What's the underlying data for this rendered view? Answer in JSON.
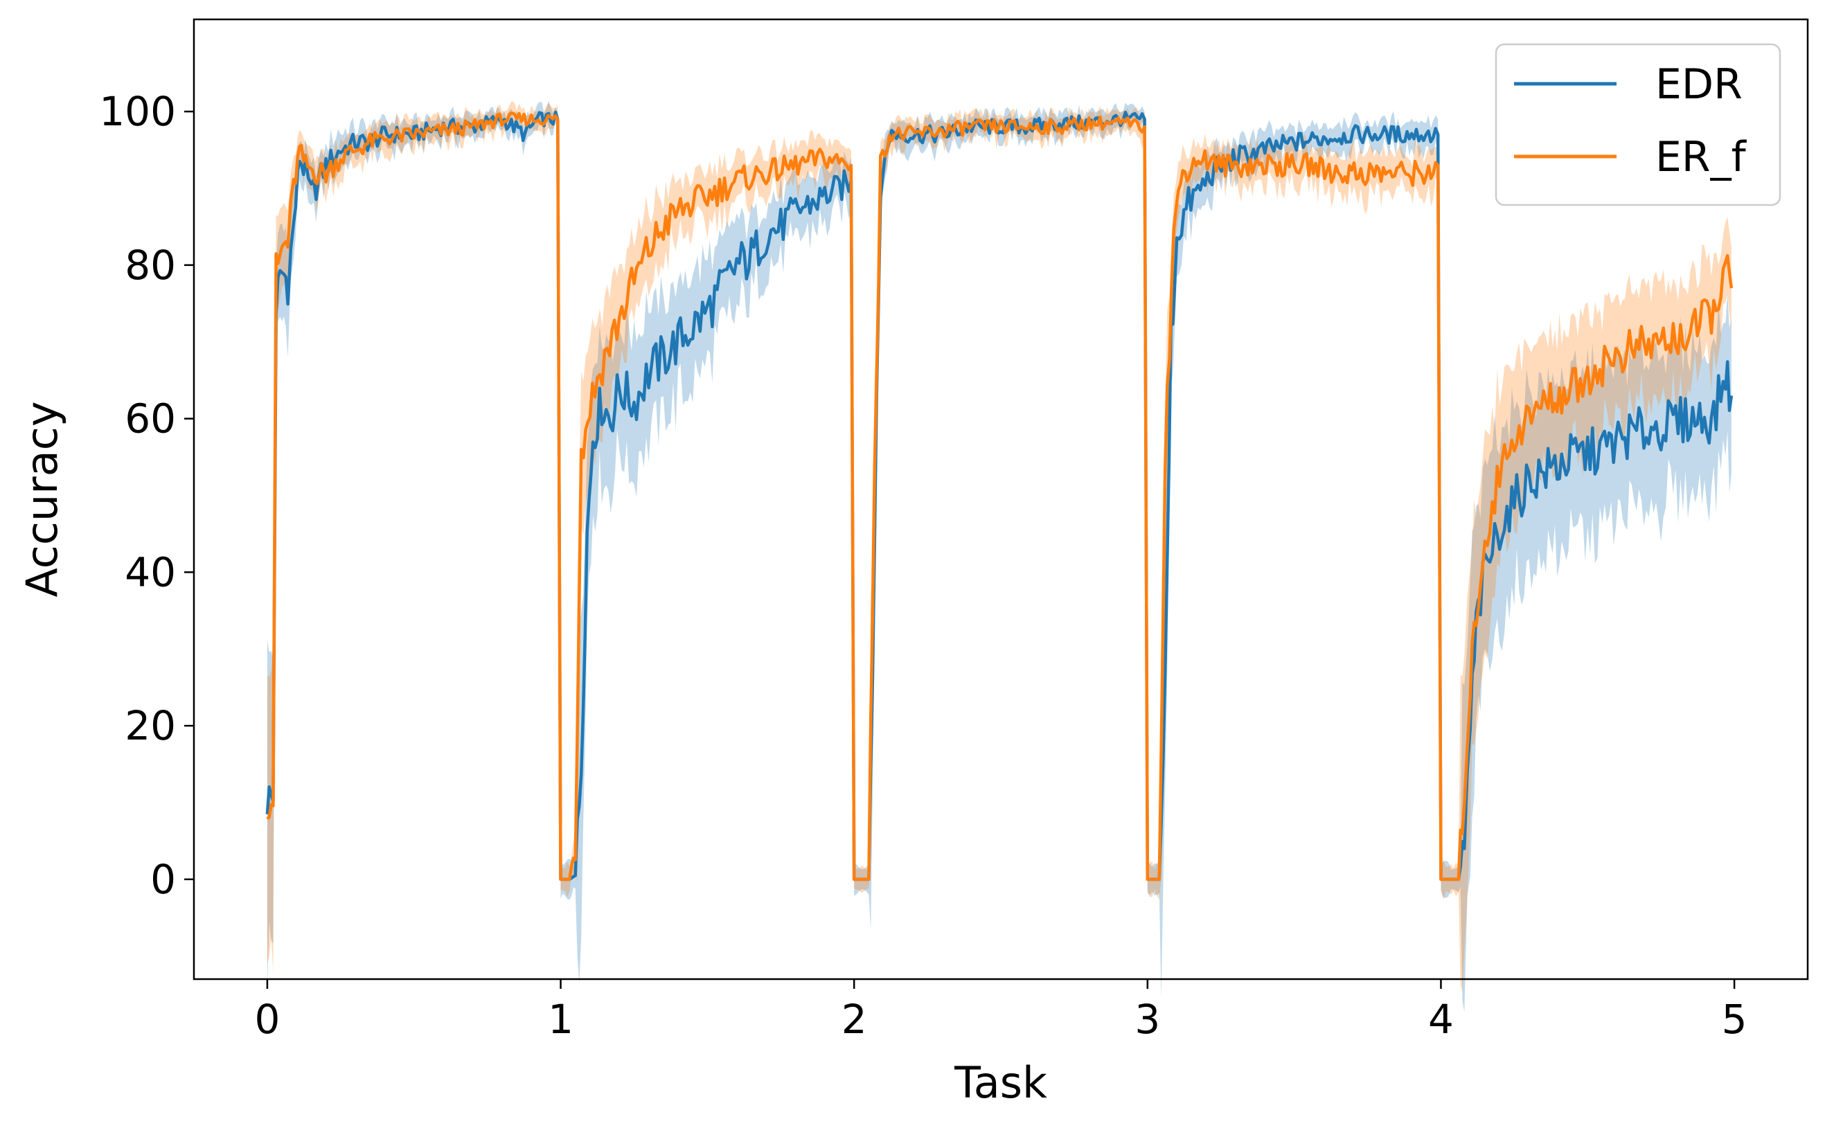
{
  "chart_data": {
    "type": "line",
    "xlabel": "Task",
    "ylabel": "Accuracy",
    "xlim": [
      -0.25,
      5.25
    ],
    "ylim": [
      -13,
      112
    ],
    "xticks": [
      0,
      1,
      2,
      3,
      4,
      5
    ],
    "yticks": [
      0,
      20,
      40,
      60,
      80,
      100
    ],
    "grid": false,
    "legend": {
      "placement": "top-right",
      "entries": [
        "EDR",
        "ER_f"
      ]
    },
    "series": [
      {
        "name": "EDR",
        "color": "#1f77b4",
        "band_color": "#1f77b4",
        "points": [
          [
            0.0,
            10.5
          ],
          [
            0.02,
            10.5
          ],
          [
            0.03,
            75
          ],
          [
            0.05,
            79
          ],
          [
            0.07,
            78
          ],
          [
            0.09,
            85
          ],
          [
            0.11,
            94
          ],
          [
            0.13,
            92
          ],
          [
            0.15,
            89
          ],
          [
            0.2,
            93
          ],
          [
            0.25,
            95
          ],
          [
            0.3,
            96
          ],
          [
            0.35,
            96
          ],
          [
            0.4,
            97
          ],
          [
            0.5,
            97
          ],
          [
            0.6,
            98
          ],
          [
            0.7,
            98
          ],
          [
            0.8,
            99
          ],
          [
            0.88,
            97
          ],
          [
            0.92,
            99
          ],
          [
            0.99,
            99
          ],
          [
            1.0,
            0
          ],
          [
            1.03,
            0
          ],
          [
            1.05,
            0.5
          ],
          [
            1.07,
            15
          ],
          [
            1.09,
            45
          ],
          [
            1.11,
            58
          ],
          [
            1.14,
            62
          ],
          [
            1.17,
            60
          ],
          [
            1.2,
            64
          ],
          [
            1.25,
            62
          ],
          [
            1.3,
            66
          ],
          [
            1.35,
            68
          ],
          [
            1.4,
            70
          ],
          [
            1.45,
            72
          ],
          [
            1.5,
            74
          ],
          [
            1.55,
            77
          ],
          [
            1.6,
            80
          ],
          [
            1.65,
            81
          ],
          [
            1.7,
            84
          ],
          [
            1.75,
            85
          ],
          [
            1.8,
            87
          ],
          [
            1.85,
            88
          ],
          [
            1.9,
            89
          ],
          [
            1.95,
            90
          ],
          [
            1.99,
            91
          ],
          [
            2.0,
            0
          ],
          [
            2.05,
            0
          ],
          [
            2.07,
            45
          ],
          [
            2.09,
            90
          ],
          [
            2.12,
            97
          ],
          [
            2.2,
            97
          ],
          [
            2.3,
            97
          ],
          [
            2.4,
            98
          ],
          [
            2.5,
            98
          ],
          [
            2.6,
            98
          ],
          [
            2.7,
            98.5
          ],
          [
            2.8,
            98.5
          ],
          [
            2.9,
            99
          ],
          [
            2.99,
            99
          ],
          [
            3.0,
            0
          ],
          [
            3.04,
            0
          ],
          [
            3.06,
            25
          ],
          [
            3.08,
            70
          ],
          [
            3.1,
            84
          ],
          [
            3.14,
            88
          ],
          [
            3.18,
            90
          ],
          [
            3.22,
            92
          ],
          [
            3.3,
            94
          ],
          [
            3.4,
            95
          ],
          [
            3.5,
            96
          ],
          [
            3.6,
            96.5
          ],
          [
            3.7,
            97
          ],
          [
            3.8,
            97
          ],
          [
            3.9,
            97
          ],
          [
            3.99,
            97
          ],
          [
            4.0,
            0
          ],
          [
            4.06,
            0
          ],
          [
            4.08,
            5
          ],
          [
            4.1,
            20
          ],
          [
            4.12,
            33
          ],
          [
            4.15,
            40
          ],
          [
            4.2,
            46
          ],
          [
            4.25,
            49
          ],
          [
            4.3,
            52
          ],
          [
            4.35,
            53
          ],
          [
            4.45,
            55
          ],
          [
            4.55,
            56
          ],
          [
            4.65,
            58
          ],
          [
            4.75,
            59
          ],
          [
            4.85,
            60
          ],
          [
            4.93,
            60
          ],
          [
            4.97,
            66
          ],
          [
            4.99,
            63
          ]
        ]
      },
      {
        "name": "ER_f",
        "color": "#ff7f0e",
        "band_color": "#ff7f0e",
        "points": [
          [
            0.0,
            10.5
          ],
          [
            0.02,
            10.5
          ],
          [
            0.03,
            79
          ],
          [
            0.05,
            82
          ],
          [
            0.07,
            83
          ],
          [
            0.09,
            90
          ],
          [
            0.11,
            95
          ],
          [
            0.13,
            93
          ],
          [
            0.17,
            92
          ],
          [
            0.2,
            92
          ],
          [
            0.25,
            94
          ],
          [
            0.3,
            95
          ],
          [
            0.35,
            96
          ],
          [
            0.4,
            96.5
          ],
          [
            0.5,
            97
          ],
          [
            0.6,
            97.5
          ],
          [
            0.7,
            98
          ],
          [
            0.8,
            99
          ],
          [
            0.9,
            99
          ],
          [
            0.99,
            99
          ],
          [
            1.0,
            0
          ],
          [
            1.03,
            0
          ],
          [
            1.05,
            5
          ],
          [
            1.07,
            55
          ],
          [
            1.1,
            62
          ],
          [
            1.15,
            68
          ],
          [
            1.2,
            73
          ],
          [
            1.25,
            78
          ],
          [
            1.3,
            82
          ],
          [
            1.35,
            85
          ],
          [
            1.4,
            87
          ],
          [
            1.45,
            88
          ],
          [
            1.5,
            89
          ],
          [
            1.55,
            90
          ],
          [
            1.6,
            91
          ],
          [
            1.7,
            92
          ],
          [
            1.8,
            93
          ],
          [
            1.9,
            94
          ],
          [
            1.99,
            93
          ],
          [
            2.0,
            0
          ],
          [
            2.05,
            0
          ],
          [
            2.07,
            55
          ],
          [
            2.09,
            93
          ],
          [
            2.12,
            97
          ],
          [
            2.2,
            97
          ],
          [
            2.3,
            97.5
          ],
          [
            2.4,
            98
          ],
          [
            2.5,
            98
          ],
          [
            2.6,
            98
          ],
          [
            2.7,
            98
          ],
          [
            2.8,
            98.5
          ],
          [
            2.9,
            98.5
          ],
          [
            2.99,
            98
          ],
          [
            3.0,
            0
          ],
          [
            3.04,
            0
          ],
          [
            3.06,
            55
          ],
          [
            3.09,
            85
          ],
          [
            3.12,
            92
          ],
          [
            3.18,
            94
          ],
          [
            3.25,
            93
          ],
          [
            3.35,
            93
          ],
          [
            3.45,
            93
          ],
          [
            3.55,
            93
          ],
          [
            3.65,
            92
          ],
          [
            3.75,
            92
          ],
          [
            3.85,
            92
          ],
          [
            3.95,
            92
          ],
          [
            3.99,
            93
          ],
          [
            4.0,
            0
          ],
          [
            4.06,
            0
          ],
          [
            4.08,
            12
          ],
          [
            4.1,
            25
          ],
          [
            4.12,
            35
          ],
          [
            4.15,
            44
          ],
          [
            4.2,
            53
          ],
          [
            4.25,
            58
          ],
          [
            4.3,
            60
          ],
          [
            4.35,
            62
          ],
          [
            4.45,
            64
          ],
          [
            4.55,
            67
          ],
          [
            4.65,
            69
          ],
          [
            4.75,
            70
          ],
          [
            4.85,
            71
          ],
          [
            4.93,
            74
          ],
          [
            4.97,
            80
          ],
          [
            4.99,
            77
          ]
        ]
      }
    ]
  }
}
